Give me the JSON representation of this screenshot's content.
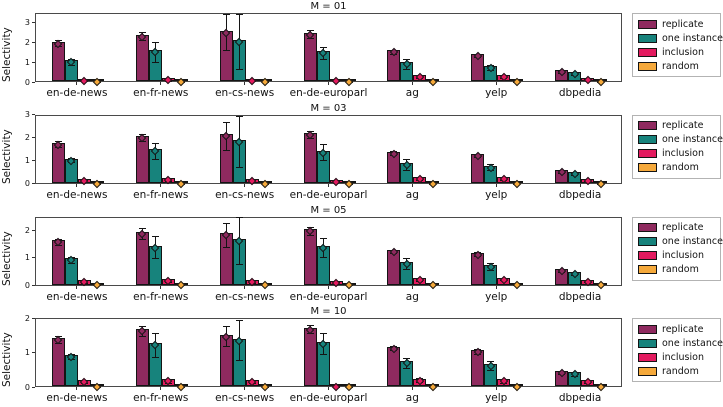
{
  "figure": {
    "ylabel": "Selectivity"
  },
  "chart_data": {
    "type": "bar",
    "layout": "4 vertically stacked subplots; grouped bars with diamond mean markers and symmetric error bars; legend box to the right of each subplot; grid off",
    "legend_position": "right",
    "legend": [
      "replicate",
      "one instance",
      "inclusion",
      "random"
    ],
    "series_colors": {
      "replicate": "#8F2A5F",
      "one instance": "#17837C",
      "inclusion": "#E31A5F",
      "random": "#F5A93B"
    },
    "categories": [
      "en-de-news",
      "en-fr-news",
      "en-cs-news",
      "en-de-europarl",
      "ag",
      "yelp",
      "dbpedia"
    ],
    "ylabel": "Selectivity",
    "subplots": [
      {
        "title": "M = 01",
        "ylim": [
          0,
          3.5
        ],
        "yticks": [
          0,
          1,
          2,
          3
        ],
        "series": [
          {
            "name": "replicate",
            "values": [
              2.0,
              2.35,
              2.55,
              2.45,
              1.55,
              1.35,
              0.55
            ],
            "errors": [
              0.15,
              0.2,
              0.9,
              0.2,
              0.1,
              0.08,
              0.05
            ]
          },
          {
            "name": "one instance",
            "values": [
              1.05,
              1.55,
              2.1,
              1.5,
              0.95,
              0.75,
              0.45
            ],
            "errors": [
              0.15,
              0.5,
              1.4,
              0.3,
              0.25,
              0.12,
              0.06
            ]
          },
          {
            "name": "inclusion",
            "values": [
              0.12,
              0.15,
              0.12,
              0.1,
              0.3,
              0.3,
              0.15
            ],
            "errors": [
              0.04,
              0.06,
              0.05,
              0.04,
              0.06,
              0.06,
              0.04
            ]
          },
          {
            "name": "random",
            "values": [
              0.05,
              0.05,
              0.05,
              0.05,
              0.05,
              0.05,
              0.05
            ],
            "errors": [
              0.02,
              0.02,
              0.02,
              0.02,
              0.02,
              0.02,
              0.02
            ]
          }
        ]
      },
      {
        "title": "M = 03",
        "ylim": [
          0,
          3.0
        ],
        "yticks": [
          0,
          1,
          2,
          3
        ],
        "series": [
          {
            "name": "replicate",
            "values": [
              1.75,
              2.05,
              2.1,
              2.15,
              1.35,
              1.25,
              0.55
            ],
            "errors": [
              0.15,
              0.15,
              0.6,
              0.15,
              0.08,
              0.08,
              0.05
            ]
          },
          {
            "name": "one instance",
            "values": [
              1.05,
              1.45,
              1.85,
              1.4,
              0.85,
              0.75,
              0.45
            ],
            "errors": [
              0.1,
              0.35,
              1.1,
              0.35,
              0.25,
              0.12,
              0.06
            ]
          },
          {
            "name": "inclusion",
            "values": [
              0.15,
              0.2,
              0.15,
              0.12,
              0.25,
              0.25,
              0.18
            ],
            "errors": [
              0.05,
              0.07,
              0.05,
              0.04,
              0.05,
              0.05,
              0.04
            ]
          },
          {
            "name": "random",
            "values": [
              0.05,
              0.05,
              0.05,
              0.05,
              0.05,
              0.05,
              0.05
            ],
            "errors": [
              0.02,
              0.02,
              0.02,
              0.02,
              0.02,
              0.02,
              0.02
            ]
          }
        ]
      },
      {
        "title": "M = 05",
        "ylim": [
          0,
          2.5
        ],
        "yticks": [
          0,
          1,
          2
        ],
        "series": [
          {
            "name": "replicate",
            "values": [
              1.6,
              1.9,
              1.85,
              2.0,
              1.25,
              1.15,
              0.55
            ],
            "errors": [
              0.1,
              0.2,
              0.45,
              0.15,
              0.07,
              0.07,
              0.05
            ]
          },
          {
            "name": "one instance",
            "values": [
              0.95,
              1.4,
              1.65,
              1.4,
              0.8,
              0.7,
              0.45
            ],
            "errors": [
              0.1,
              0.4,
              0.85,
              0.35,
              0.2,
              0.12,
              0.06
            ]
          },
          {
            "name": "inclusion",
            "values": [
              0.15,
              0.2,
              0.15,
              0.12,
              0.22,
              0.25,
              0.18
            ],
            "errors": [
              0.05,
              0.06,
              0.05,
              0.04,
              0.05,
              0.05,
              0.04
            ]
          },
          {
            "name": "random",
            "values": [
              0.05,
              0.05,
              0.05,
              0.05,
              0.05,
              0.05,
              0.05
            ],
            "errors": [
              0.02,
              0.02,
              0.02,
              0.02,
              0.02,
              0.02,
              0.02
            ]
          }
        ]
      },
      {
        "title": "M = 10",
        "ylim": [
          0,
          2.0
        ],
        "yticks": [
          0,
          1,
          2
        ],
        "series": [
          {
            "name": "replicate",
            "values": [
              1.4,
              1.65,
              1.5,
              1.7,
              1.15,
              1.05,
              0.45
            ],
            "errors": [
              0.1,
              0.15,
              0.3,
              0.12,
              0.07,
              0.07,
              0.05
            ]
          },
          {
            "name": "one instance",
            "values": [
              0.9,
              1.25,
              1.38,
              1.28,
              0.72,
              0.65,
              0.4
            ],
            "errors": [
              0.08,
              0.35,
              0.58,
              0.3,
              0.15,
              0.13,
              0.06
            ]
          },
          {
            "name": "inclusion",
            "values": [
              0.18,
              0.2,
              0.18,
              0.03,
              0.22,
              0.2,
              0.18
            ],
            "errors": [
              0.05,
              0.06,
              0.05,
              0.02,
              0.05,
              0.05,
              0.04
            ]
          },
          {
            "name": "random",
            "values": [
              0.05,
              0.05,
              0.05,
              0.05,
              0.05,
              0.05,
              0.05
            ],
            "errors": [
              0.02,
              0.02,
              0.02,
              0.02,
              0.02,
              0.02,
              0.02
            ]
          }
        ]
      }
    ]
  }
}
